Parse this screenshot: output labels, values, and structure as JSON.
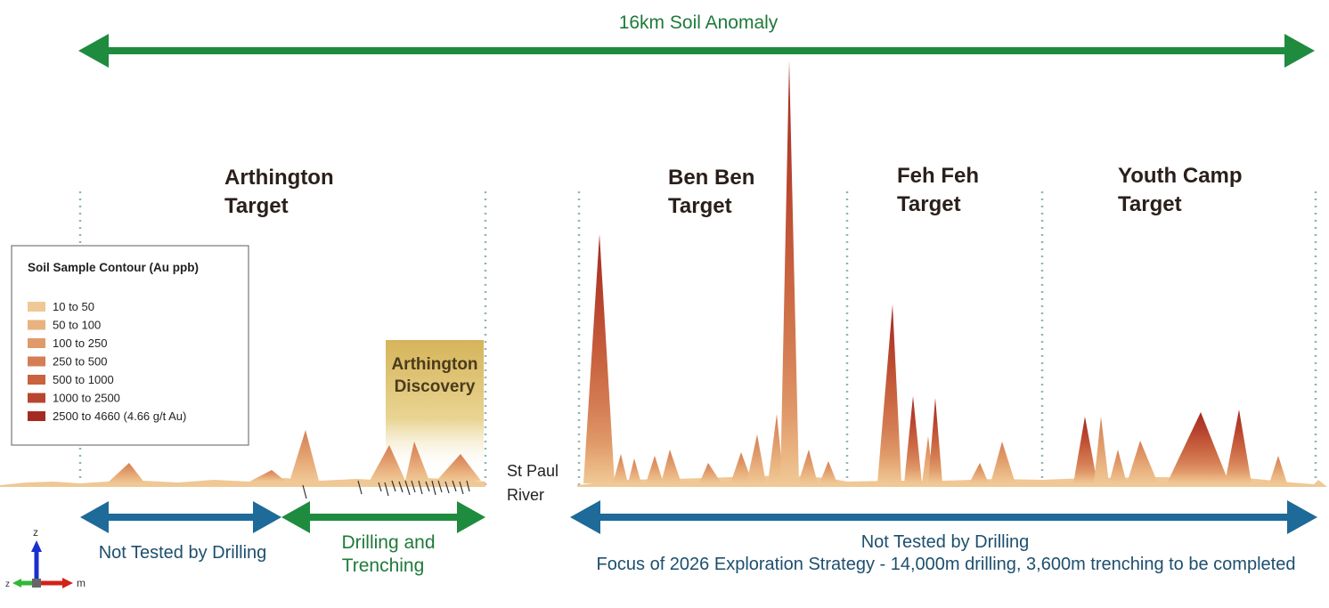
{
  "title_banner": "16km Soil Anomaly",
  "targets": [
    {
      "line1": "Arthington",
      "line2": "Target"
    },
    {
      "line1": "Ben Ben",
      "line2": "Target"
    },
    {
      "line1": "Feh Feh",
      "line2": "Target"
    },
    {
      "line1": "Youth Camp",
      "line2": "Target"
    }
  ],
  "discovery": {
    "line1": "Arthington",
    "line2": "Discovery"
  },
  "river": {
    "line1": "St Paul",
    "line2": "River"
  },
  "legend": {
    "title": "Soil Sample Contour (Au ppb)",
    "items": [
      {
        "label": "10 to 50",
        "color": "#efc895"
      },
      {
        "label": "50 to 100",
        "color": "#e9b27f"
      },
      {
        "label": "100 to 250",
        "color": "#e09a6a"
      },
      {
        "label": "250 to 500",
        "color": "#d57e55"
      },
      {
        "label": "500 to 1000",
        "color": "#c8623f"
      },
      {
        "label": "1000 to 2500",
        "color": "#b8452f"
      },
      {
        "label": "2500 to 4660 (4.66 g/t Au)",
        "color": "#a52b22"
      }
    ]
  },
  "bottom_labels": {
    "left_not_tested": "Not Tested by Drilling",
    "drilling_line1": "Drilling and",
    "drilling_line2": "Trenching",
    "right_not_tested": "Not Tested by Drilling",
    "focus": "Focus of 2026 Exploration Strategy - 14,000m drilling, 3,600m trenching to be completed"
  },
  "axes": {
    "z": "z",
    "m": "m"
  },
  "colors": {
    "green": "#1f8b3e",
    "blue": "#1e6a98",
    "divider": "#8fb5b0"
  }
}
